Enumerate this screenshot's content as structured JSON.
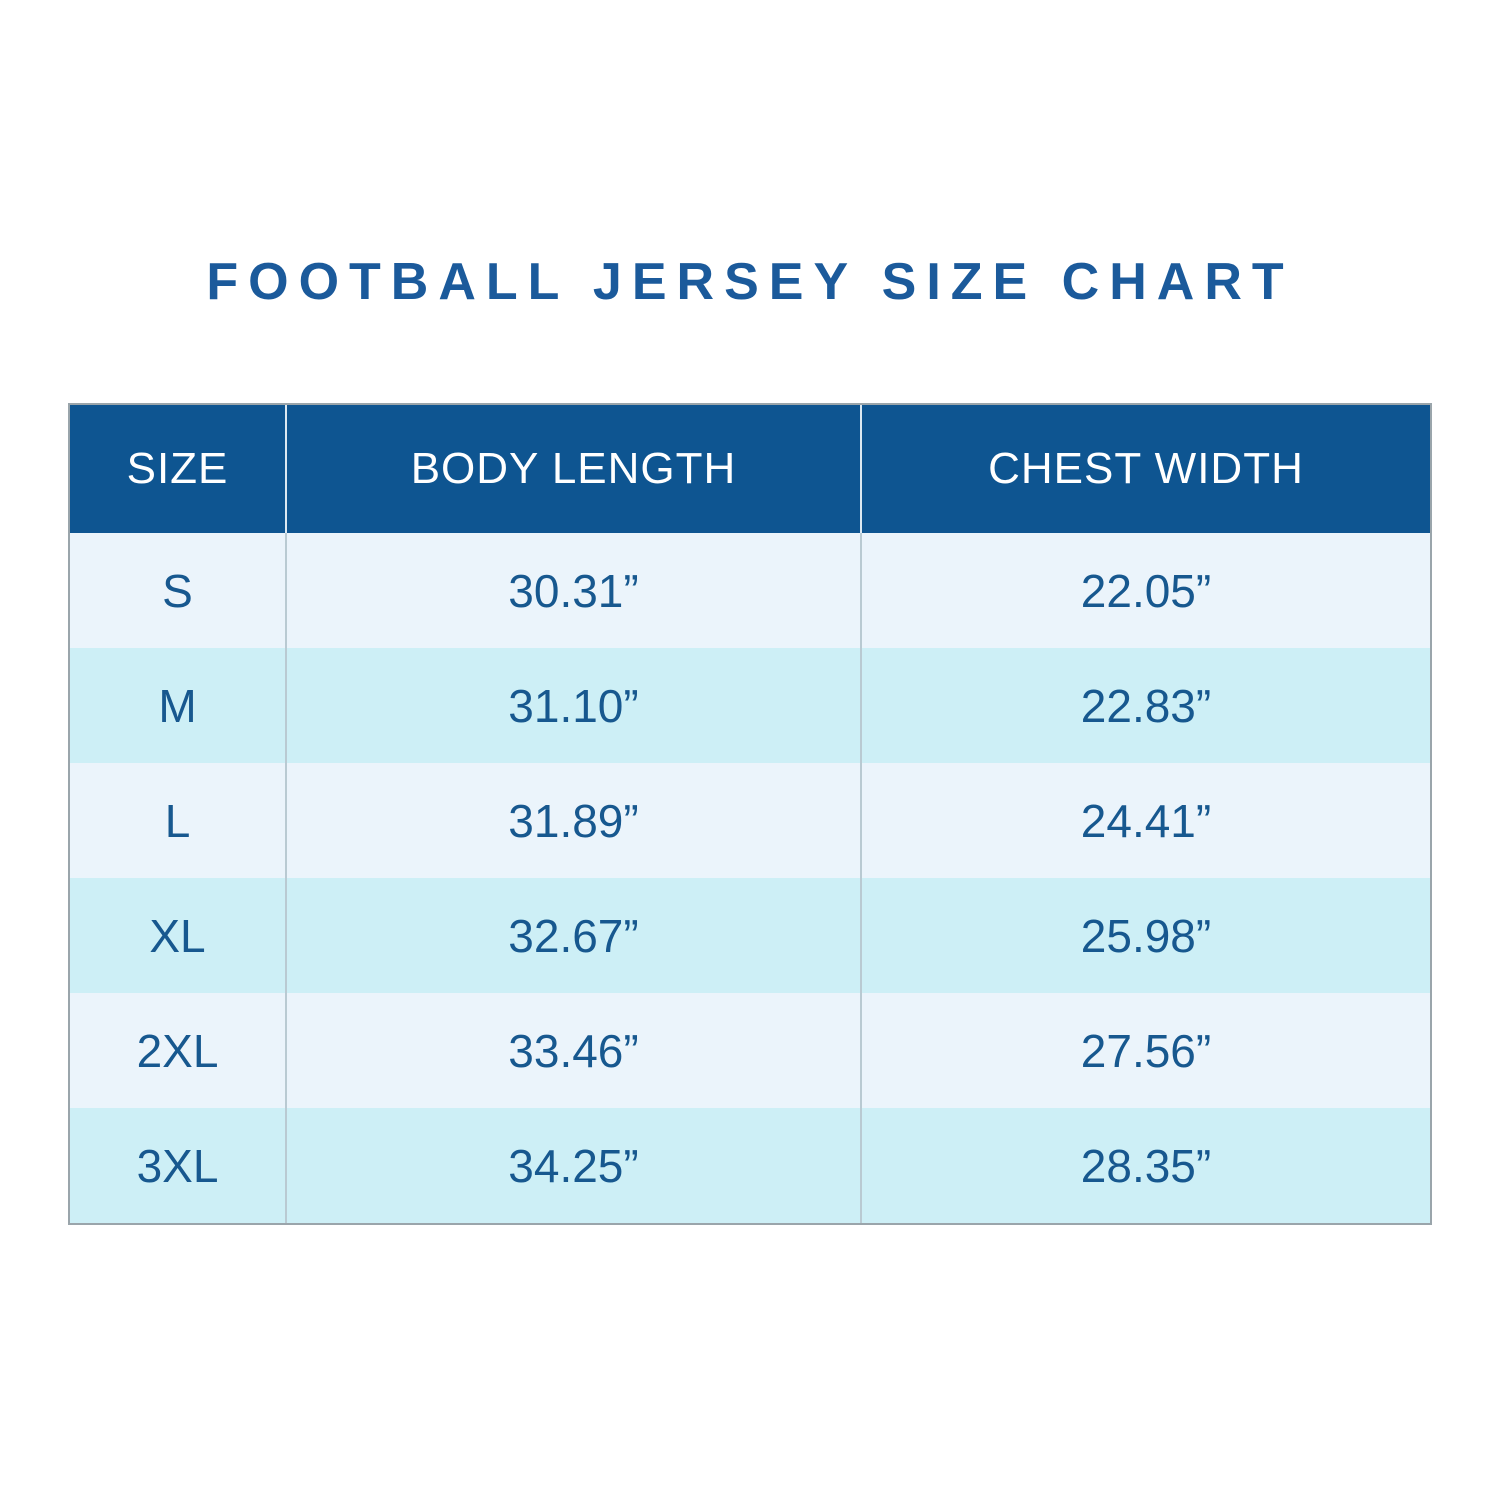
{
  "page": {
    "title": "FOOTBALL JERSEY SIZE CHART"
  },
  "chart_data": {
    "type": "table",
    "title": "FOOTBALL JERSEY SIZE CHART",
    "columns": [
      "SIZE",
      "BODY LENGTH",
      "CHEST WIDTH"
    ],
    "rows": [
      [
        "S",
        "30.31”",
        "22.05”"
      ],
      [
        "M",
        "31.10”",
        "22.83”"
      ],
      [
        "L",
        "31.89”",
        "24.41”"
      ],
      [
        "XL",
        "32.67”",
        "25.98”"
      ],
      [
        "2XL",
        "33.46”",
        "27.56”"
      ],
      [
        "3XL",
        "34.25”",
        "28.35”"
      ]
    ],
    "layout": {
      "header_position": "top",
      "alternating_rows": true,
      "legend": "none",
      "grid": "column-dividers-only"
    }
  },
  "colors": {
    "title_text": "#1B5A9B",
    "header_bg": "#0E5591",
    "header_text": "#FFFFFF",
    "row_light_bg": "#EBF4FB",
    "row_alt_bg": "#CDEFF6",
    "cell_text": "#17588F",
    "table_border": "#9AA5AB",
    "divider_body": "#B9CAD2",
    "divider_header": "#DCE9F2"
  }
}
